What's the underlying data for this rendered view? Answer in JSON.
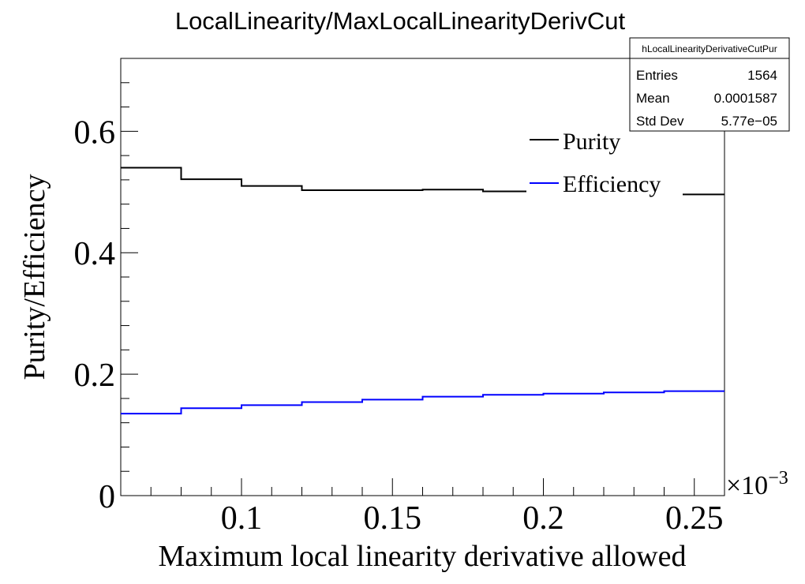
{
  "chart_data": {
    "type": "line",
    "title": "LocalLinearity/MaxLocalLinearityDerivCut",
    "xlabel": "Maximum local linearity derivative allowed",
    "ylabel": "Purity/Efficiency",
    "x_multiplier": "×10",
    "x_multiplier_exponent": "−3",
    "xlim": [
      0.06,
      0.26
    ],
    "ylim": [
      0,
      0.72
    ],
    "x_ticks": [
      0.1,
      0.15,
      0.2,
      0.25
    ],
    "x_tick_labels": [
      "0.1",
      "0.15",
      "0.2",
      "0.25"
    ],
    "y_ticks": [
      0,
      0.2,
      0.4,
      0.6
    ],
    "y_tick_labels": [
      "0",
      "0.2",
      "0.4",
      "0.6"
    ],
    "bin_edges": [
      0.06,
      0.08,
      0.1,
      0.12,
      0.14,
      0.16,
      0.18,
      0.2,
      0.22,
      0.24,
      0.26
    ],
    "series": [
      {
        "name": "Purity",
        "color": "#000000",
        "values": [
          0.54,
          0.521,
          0.51,
          0.503,
          0.503,
          0.504,
          0.501,
          0.499,
          0.498,
          0.496
        ]
      },
      {
        "name": "Efficiency",
        "color": "#0000ff",
        "values": [
          0.135,
          0.144,
          0.149,
          0.154,
          0.158,
          0.163,
          0.166,
          0.168,
          0.17,
          0.172
        ]
      }
    ],
    "legend_position": "top-right",
    "stats": {
      "name": "hLocalLinearityDerivativeCutPur",
      "rows": [
        {
          "label": "Entries",
          "value": "1564"
        },
        {
          "label": "Mean",
          "value": "0.0001587"
        },
        {
          "label": "Std Dev",
          "value": "5.77e−05"
        }
      ]
    }
  }
}
